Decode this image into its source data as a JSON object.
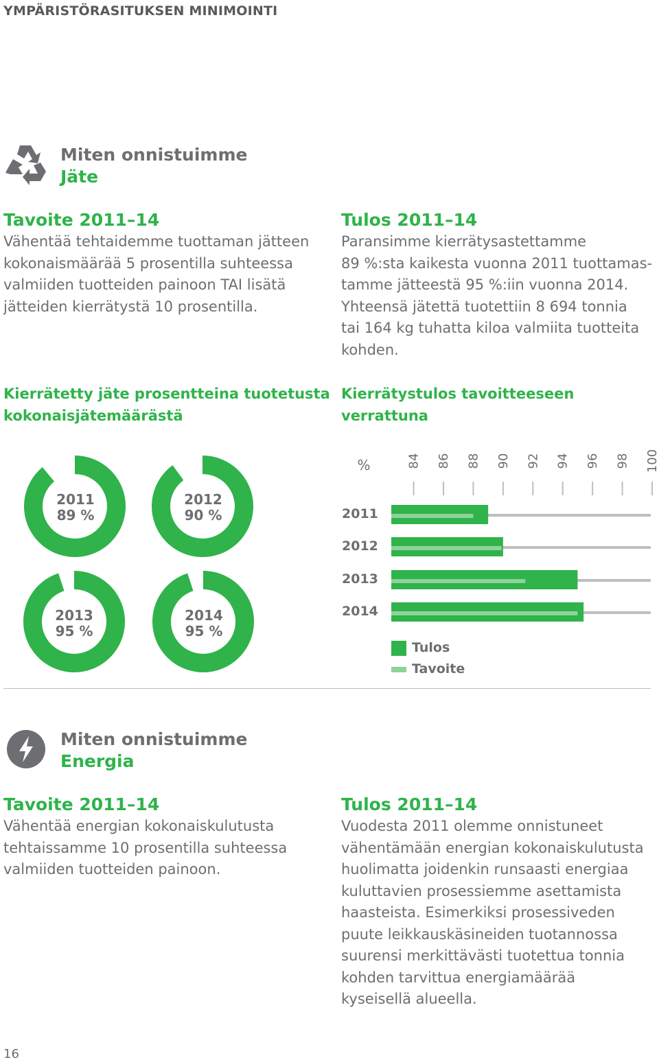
{
  "header": {
    "title": "YMPÄRISTÖRASITUKSEN MINIMOINTI"
  },
  "colors": {
    "green": "#2fb34a",
    "light_green": "#8fd29a",
    "gray": "#6d6e71",
    "light_gray": "#bcbec0"
  },
  "waste": {
    "icon": "recycle-icon",
    "title_line1": "Miten onnistuimme",
    "title_line2": "Jäte",
    "goal_heading": "Tavoite 2011–14",
    "goal_lines": [
      "Vähentää tehtaidemme tuottaman jätteen",
      "kokonaismäärää 5 prosentilla suhteessa",
      "valmiiden tuotteiden painoon TAI lisätä",
      "jätteiden kierrätystä 10 prosentilla."
    ],
    "result_heading": "Tulos 2011–14",
    "result_lines": [
      "Paransimme kierrätysastettamme",
      "89 %:sta kaikesta vuonna 2011 tuottamas-",
      "tamme jätteestä 95 %:iin vuonna 2014.",
      "Yhteensä jätettä tuotettiin 8 694 tonnia",
      "tai 164 kg tuhatta kiloa valmiita tuotteita",
      "kohden."
    ],
    "donut_heading_lines": [
      "Kierrätetty jäte prosentteina tuotetusta",
      "kokonaisjätemäärästä"
    ],
    "bar_heading_lines": [
      "Kierrätystulos tavoitteeseen",
      "verrattuna"
    ]
  },
  "chart_data": [
    {
      "type": "pie",
      "title": "Kierrätetty jäte prosentteina tuotetusta kokonaisjätemäärästä",
      "items": [
        {
          "year": "2011",
          "label": "89 %",
          "value": 89
        },
        {
          "year": "2012",
          "label": "90 %",
          "value": 90
        },
        {
          "year": "2013",
          "label": "95 %",
          "value": 95
        },
        {
          "year": "2014",
          "label": "95 %",
          "value": 95
        }
      ]
    },
    {
      "type": "bar",
      "title": "Kierrätystulos tavoitteeseen verrattuna",
      "axis_unit": "%",
      "ticks": [
        "84",
        "86",
        "88",
        "90",
        "92",
        "94",
        "96",
        "98",
        "100"
      ],
      "xlim": [
        82.5,
        100
      ],
      "categories": [
        "2011",
        "2012",
        "2013",
        "2014"
      ],
      "series": [
        {
          "name": "Tulos",
          "values": [
            89,
            90,
            95,
            95.4
          ]
        },
        {
          "name": "Tavoite",
          "values": [
            88,
            89.9,
            91.5,
            95
          ]
        }
      ]
    }
  ],
  "energy": {
    "icon": "lightning-icon",
    "title_line1": "Miten onnistuimme",
    "title_line2": "Energia",
    "goal_heading": "Tavoite 2011–14",
    "goal_lines": [
      "Vähentää energian kokonaiskulutusta",
      "tehtaissamme 10 prosentilla suhteessa",
      "valmiiden tuotteiden painoon."
    ],
    "result_heading": "Tulos 2011–14",
    "result_lines": [
      "Vuodesta 2011 olemme onnistuneet",
      "vähentämään energian kokonaiskulutusta",
      "huolimatta joidenkin runsaasti energiaa",
      "kuluttavien prosessiemme asettamista",
      "haasteista. Esimerkiksi prosessiveden",
      "puute leikkauskäsineiden tuotannossa",
      "suurensi merkittävästi tuotettua tonnia",
      "kohden tarvittua energiamäärää",
      "kyseisellä alueella."
    ]
  },
  "page_number": "16"
}
